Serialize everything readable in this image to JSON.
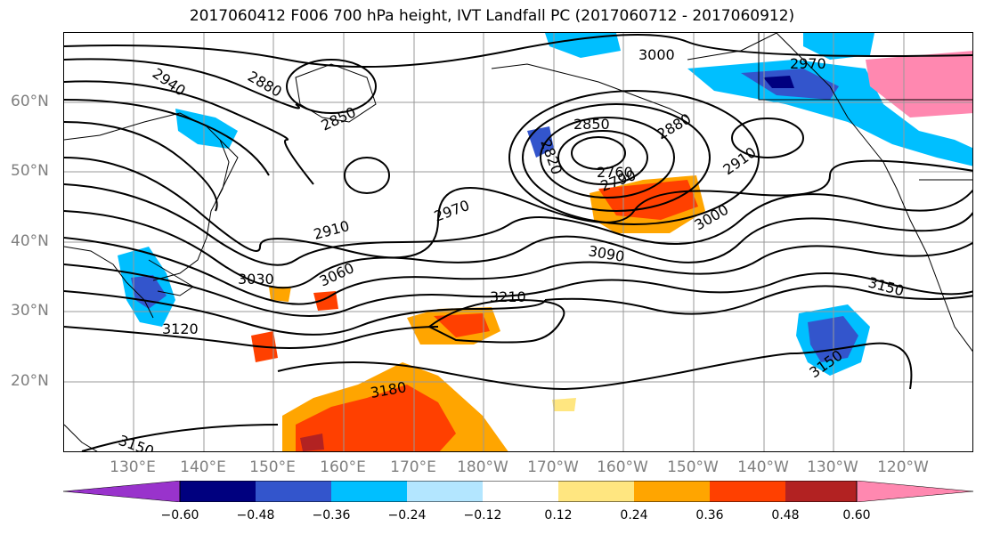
{
  "title": "2017060412 F006 700 hPa height, IVT Landfall PC (2017060712 - 2017060912)",
  "lat_labels": [
    "60°N",
    "50°N",
    "40°N",
    "30°N",
    "20°N"
  ],
  "lon_labels": [
    "130°E",
    "140°E",
    "150°E",
    "160°E",
    "170°E",
    "180°W",
    "170°W",
    "160°W",
    "150°W",
    "140°W",
    "130°W",
    "120°W"
  ],
  "contour_labels": [
    "2940",
    "2880",
    "2850",
    "2910",
    "2970",
    "3030",
    "3060",
    "3120",
    "3150",
    "3180",
    "3210",
    "2850",
    "2820",
    "2760",
    "2790",
    "2880",
    "2910",
    "3000",
    "3090",
    "3000",
    "2970",
    "3150",
    "3150"
  ],
  "colorbar": {
    "ticks": [
      "−0.60",
      "−0.48",
      "−0.36",
      "−0.24",
      "−0.12",
      "0.12",
      "0.24",
      "0.36",
      "0.48",
      "0.60"
    ],
    "colors": [
      "#9933cc",
      "#00007f",
      "#3355cc",
      "#00bfff",
      "#b3e6ff",
      "#ffffff",
      "#ffe680",
      "#ffa500",
      "#ff4000",
      "#b22222",
      "#ff88b0"
    ]
  },
  "colors": {
    "neg_strong": "#3355cc",
    "neg_mid": "#00bfff",
    "neg_weak": "#b3e6ff",
    "pos_weak": "#ffe680",
    "pos_mid": "#ffa500",
    "pos_strong": "#ff4000",
    "pos_max": "#b22222",
    "neg_max": "#00007f",
    "contour": "#000000",
    "grid": "#999999",
    "coast": "#000000"
  }
}
